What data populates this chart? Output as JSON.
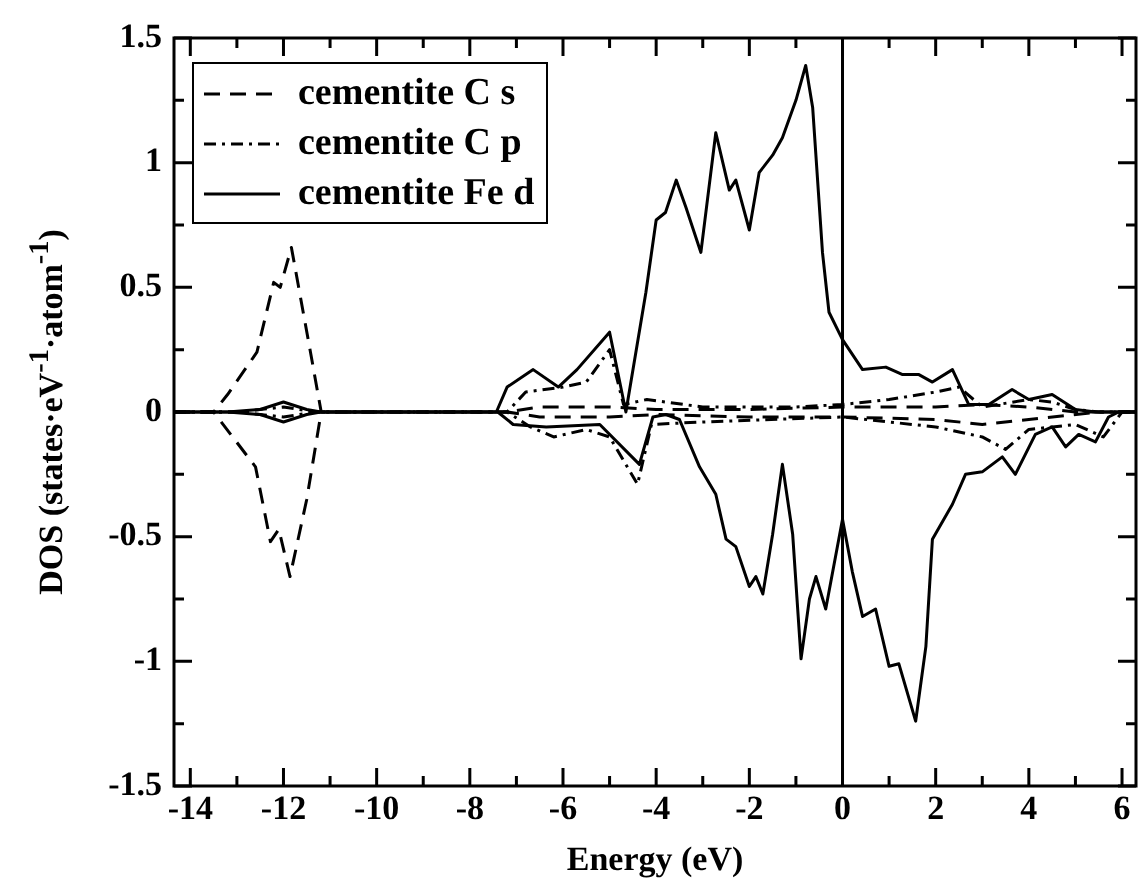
{
  "chart_data": {
    "type": "line",
    "xlabel": "Energy (eV)",
    "ylabel": "DOS (states·eV$^{-1}$·atom$^{-1}$)",
    "xlim": [
      -14.35,
      6.3
    ],
    "ylim": [
      -1.5,
      1.5
    ],
    "xticks": [
      -14,
      {
        "value": -13,
        "label": null
      },
      -12,
      {
        "value": -11,
        "label": null
      },
      -10,
      {
        "value": -9,
        "label": null
      },
      -8,
      {
        "value": -7,
        "label": null
      },
      -6,
      {
        "value": -5,
        "label": null
      },
      -4,
      {
        "value": -3,
        "label": null
      },
      -2,
      {
        "value": -1,
        "label": null
      },
      0,
      {
        "value": 1,
        "label": null
      },
      2,
      {
        "value": 3,
        "label": null
      },
      4,
      {
        "value": 5,
        "label": null
      },
      6
    ],
    "yticks": [
      -1.5,
      {
        "value": -1.25,
        "label": null
      },
      -1,
      {
        "value": -0.75,
        "label": null
      },
      -0.5,
      {
        "value": -0.25,
        "label": null
      },
      0,
      {
        "value": 0.25,
        "label": null
      },
      0.5,
      {
        "value": 0.75,
        "label": null
      },
      1,
      {
        "value": 1.25,
        "label": null
      },
      1.5
    ],
    "grid": false,
    "legend": "top left",
    "marker": "none",
    "ref_lines": [
      {
        "axis": "x",
        "value": 0,
        "color": "#000000"
      }
    ],
    "series": [
      {
        "name": "cementite C s",
        "color": "#000000",
        "line_style": "dashed",
        "x": [
          -14.35,
          -13.5,
          -13.2,
          -12.57,
          -12.21,
          -12.07,
          -11.83,
          -11.43,
          -11.19,
          -7.2,
          -6.5,
          -5,
          -4,
          -2,
          0,
          2,
          3,
          4,
          5,
          6.3
        ],
        "values": [
          0,
          0,
          0.07,
          0.24,
          0.52,
          0.5,
          0.66,
          0.25,
          0,
          0,
          0.02,
          0.02,
          0.01,
          0.01,
          0.02,
          0.02,
          0.03,
          0.02,
          0,
          0
        ]
      },
      {
        "name": "cementite C p",
        "color": "#000000",
        "line_style": "dotted",
        "x": [
          -14.35,
          -13,
          -12,
          -11.3,
          -7.2,
          -6.8,
          -6,
          -5.5,
          -5,
          -4.7,
          -4.2,
          -3,
          -1,
          0,
          1,
          2,
          2.5,
          3,
          4,
          4.5,
          5,
          5.5,
          6.3
        ],
        "values": [
          0,
          0,
          0.02,
          0,
          0,
          0.08,
          0.1,
          0.12,
          0.25,
          0.03,
          0.05,
          0.02,
          0.02,
          0.03,
          0.05,
          0.08,
          0.1,
          0.02,
          0.05,
          0.04,
          0.01,
          0,
          0
        ]
      },
      {
        "name": "cementite Fe d",
        "color": "#000000",
        "line_style": "solid",
        "x": [
          -14.35,
          -13.2,
          -12.5,
          -12,
          -11.5,
          -11.2,
          -7.43,
          -7.2,
          -6.64,
          -6.1,
          -5.7,
          -5,
          -4.65,
          -4.22,
          -4,
          -3.8,
          -3.57,
          -3.36,
          -3.04,
          -2.72,
          -2.43,
          -2.29,
          -2,
          -1.79,
          -1.5,
          -1.29,
          -1,
          -0.79,
          -0.64,
          -0.43,
          -0.29,
          0,
          0.43,
          0.93,
          1.29,
          1.64,
          1.93,
          2.36,
          2.71,
          3.14,
          3.64,
          4,
          4.5,
          5,
          5.43,
          6.3
        ],
        "values": [
          0,
          0,
          0.01,
          0.04,
          0.01,
          0,
          0,
          0.1,
          0.17,
          0.1,
          0.17,
          0.32,
          0,
          0.48,
          0.77,
          0.8,
          0.93,
          0.82,
          0.64,
          1.12,
          0.89,
          0.93,
          0.73,
          0.96,
          1.03,
          1.1,
          1.25,
          1.39,
          1.22,
          0.64,
          0.4,
          0.29,
          0.17,
          0.18,
          0.15,
          0.15,
          0.12,
          0.17,
          0.03,
          0.03,
          0.09,
          0.05,
          0.07,
          0.01,
          0,
          0
        ]
      },
      {
        "color": "#000000",
        "line_style": "dashed",
        "x": [
          -14.35,
          -13.5,
          -12.6,
          -12.28,
          -12.1,
          -11.86,
          -11.5,
          -11.19,
          -7.2,
          -6.5,
          -5,
          -4,
          -2,
          0,
          2,
          3,
          4,
          5.5,
          6.3
        ],
        "values": [
          0,
          0,
          -0.22,
          -0.52,
          -0.47,
          -0.66,
          -0.35,
          0,
          0,
          -0.02,
          -0.02,
          -0.01,
          -0.02,
          -0.02,
          -0.03,
          -0.05,
          -0.03,
          0,
          0
        ]
      },
      {
        "color": "#000000",
        "line_style": "dotted",
        "x": [
          -14.35,
          -13,
          -12,
          -11.3,
          -7.2,
          -6.7,
          -6.2,
          -5.5,
          -5,
          -4.4,
          -4.1,
          -3,
          0,
          2,
          3,
          3.5,
          4,
          5,
          5.6,
          6,
          6.3
        ],
        "values": [
          0,
          0,
          -0.02,
          0,
          0,
          -0.06,
          -0.1,
          -0.07,
          -0.1,
          -0.29,
          -0.05,
          -0.04,
          -0.02,
          -0.06,
          -0.1,
          -0.15,
          -0.07,
          -0.05,
          -0.1,
          0,
          0
        ]
      },
      {
        "color": "#000000",
        "line_style": "solid",
        "x": [
          -14.35,
          -13.2,
          -12.5,
          -12,
          -11.5,
          -11.2,
          -7.4,
          -7.07,
          -6.36,
          -5.21,
          -4.36,
          -4.07,
          -3.79,
          -3.5,
          -3.07,
          -2.72,
          -2.5,
          -2.29,
          -2,
          -1.86,
          -1.71,
          -1.5,
          -1.29,
          -1.07,
          -0.89,
          -0.71,
          -0.57,
          -0.36,
          0,
          0.21,
          0.43,
          0.71,
          1,
          1.21,
          1.57,
          1.79,
          1.93,
          2.36,
          2.64,
          3,
          3.43,
          3.71,
          4.14,
          4.5,
          4.79,
          5.07,
          5.43,
          5.71,
          5.93,
          6.3
        ],
        "values": [
          0,
          0,
          -0.01,
          -0.04,
          -0.01,
          0,
          0,
          -0.05,
          -0.06,
          -0.05,
          -0.21,
          -0.02,
          -0.01,
          -0.03,
          -0.22,
          -0.33,
          -0.51,
          -0.54,
          -0.7,
          -0.66,
          -0.73,
          -0.49,
          -0.21,
          -0.49,
          -0.99,
          -0.75,
          -0.66,
          -0.79,
          -0.43,
          -0.64,
          -0.82,
          -0.79,
          -1.02,
          -1.01,
          -1.24,
          -0.94,
          -0.51,
          -0.37,
          -0.25,
          -0.24,
          -0.18,
          -0.25,
          -0.09,
          -0.06,
          -0.14,
          -0.09,
          -0.12,
          -0.02,
          0,
          0
        ]
      }
    ]
  }
}
